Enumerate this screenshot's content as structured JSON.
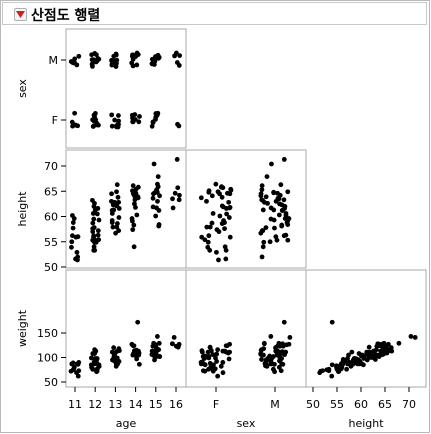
{
  "header": {
    "title": "산점도 행렬",
    "menu_icon": "red-disclosure-triangle-icon",
    "menu_color": "#cc1f1f"
  },
  "chart_data": {
    "type": "scatter",
    "matrix": "lower-triangular scatterplot matrix",
    "point_color": "#000000",
    "variables": [
      {
        "name": "age",
        "kind": "ordinal",
        "ticks": [
          "11",
          "12",
          "13",
          "14",
          "15",
          "16"
        ]
      },
      {
        "name": "sex",
        "kind": "nominal",
        "ticks": [
          "F",
          "M"
        ]
      },
      {
        "name": "height",
        "kind": "continuous",
        "ticks": [
          "50",
          "55",
          "60",
          "65",
          "70"
        ],
        "range": [
          50,
          74
        ]
      },
      {
        "name": "weight",
        "kind": "continuous",
        "ticks": [
          "50",
          "100",
          "150"
        ],
        "range": [
          40,
          175
        ]
      }
    ],
    "row_labels": [
      "sex",
      "height",
      "weight"
    ],
    "col_labels": [
      "age",
      "sex",
      "height"
    ],
    "row_ticks": [
      [
        "M",
        "F"
      ],
      [
        "70",
        "65",
        "60",
        "55",
        "50"
      ],
      [
        "150",
        "100",
        "50"
      ]
    ],
    "col_ticks": [
      [
        "11",
        "12",
        "13",
        "14",
        "15",
        "16"
      ],
      [
        "F",
        "M"
      ],
      [
        "50",
        "55",
        "60",
        "65",
        "70"
      ]
    ],
    "seed": 7,
    "groups": [
      {
        "age": 11,
        "sex": "F",
        "n": 6,
        "h": [
          51,
          59
        ],
        "w": [
          50,
          100
        ]
      },
      {
        "age": 11,
        "sex": "M",
        "n": 7,
        "h": [
          51,
          62
        ],
        "w": [
          55,
          105
        ]
      },
      {
        "age": 12,
        "sex": "F",
        "n": 12,
        "h": [
          52,
          63
        ],
        "w": [
          60,
          110
        ]
      },
      {
        "age": 12,
        "sex": "M",
        "n": 13,
        "h": [
          53,
          66
        ],
        "w": [
          65,
          125
        ]
      },
      {
        "age": 13,
        "sex": "F",
        "n": 10,
        "h": [
          56,
          65
        ],
        "w": [
          75,
          120
        ]
      },
      {
        "age": 13,
        "sex": "M",
        "n": 11,
        "h": [
          56,
          68
        ],
        "w": [
          75,
          130
        ]
      },
      {
        "age": 14,
        "sex": "F",
        "n": 8,
        "h": [
          54,
          66
        ],
        "w": [
          80,
          130
        ]
      },
      {
        "age": 14,
        "sex": "M",
        "n": 10,
        "h": [
          58,
          70
        ],
        "w": [
          85,
          145
        ]
      },
      {
        "age": 15,
        "sex": "F",
        "n": 9,
        "h": [
          60,
          67
        ],
        "w": [
          90,
          130
        ]
      },
      {
        "age": 15,
        "sex": "M",
        "n": 10,
        "h": [
          58,
          71
        ],
        "w": [
          85,
          150
        ]
      },
      {
        "age": 16,
        "sex": "F",
        "n": 2,
        "h": [
          61,
          66
        ],
        "w": [
          110,
          135
        ]
      },
      {
        "age": 16,
        "sex": "M",
        "n": 5,
        "h": [
          63,
          72
        ],
        "w": [
          115,
          150
        ]
      }
    ],
    "extra_points": [
      {
        "age": 14,
        "sex": "M",
        "height": 54,
        "weight": 172
      }
    ]
  }
}
